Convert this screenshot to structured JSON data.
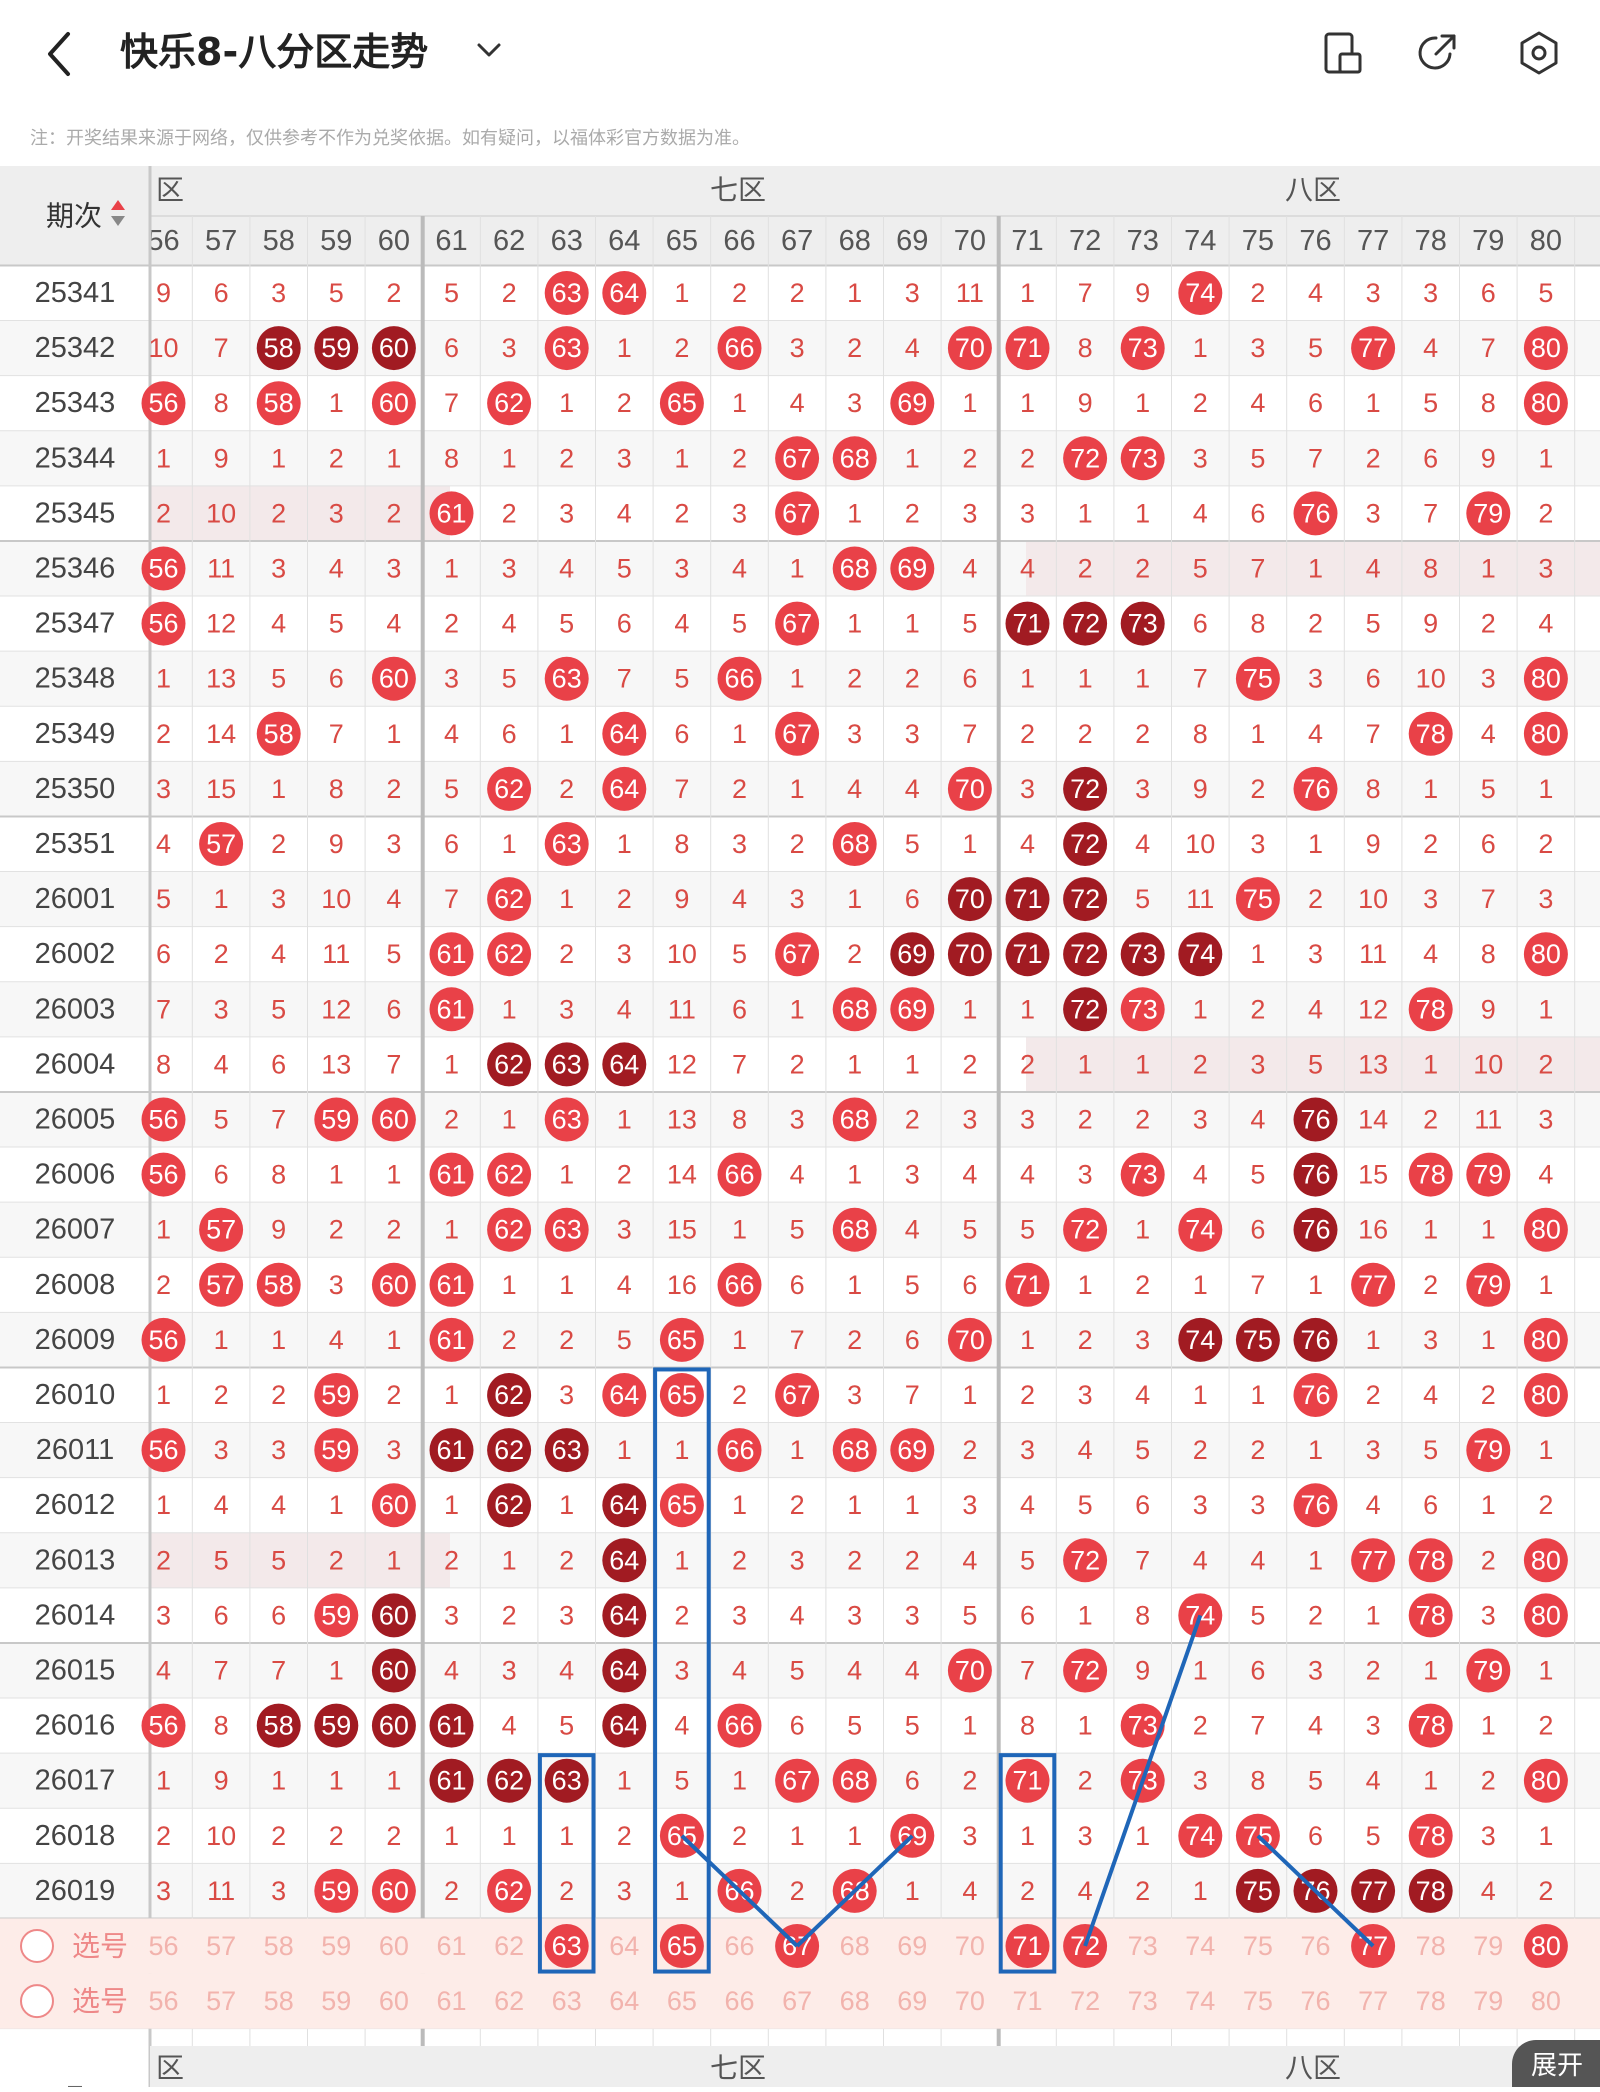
{
  "header": {
    "title": "快乐8-八分区走势",
    "back_icon": "back-arrow-icon",
    "dropdown_icon": "chevron-down-icon",
    "actions": [
      {
        "name": "layout-toggle-icon"
      },
      {
        "name": "share-icon"
      },
      {
        "name": "settings-gear-icon"
      }
    ]
  },
  "note": "注：开奖结果来源于网络，仅供参考不作为兑奖依据。如有疑问，以福体彩官方数据为准。",
  "table": {
    "period_header": "期次",
    "zones": [
      {
        "label": "六区",
        "visible_label": "六区",
        "start": 56,
        "end": 60
      },
      {
        "label": "七区",
        "start": 61,
        "end": 70
      },
      {
        "label": "八区",
        "start": 71,
        "end": 80
      }
    ],
    "columns": [
      56,
      57,
      58,
      59,
      60,
      61,
      62,
      63,
      64,
      65,
      66,
      67,
      68,
      69,
      70,
      71,
      72,
      73,
      74,
      75,
      76,
      77,
      78,
      79,
      80
    ],
    "periods": [
      "25341",
      "25342",
      "25343",
      "25344",
      "25345",
      "25346",
      "25347",
      "25348",
      "25349",
      "25350",
      "25351",
      "26001",
      "26002",
      "26003",
      "26004",
      "26005",
      "26006",
      "26007",
      "26008",
      "26009",
      "26010",
      "26011",
      "26012",
      "26013",
      "26014",
      "26015",
      "26016",
      "26017",
      "26018",
      "26019"
    ],
    "rows": [
      [
        9,
        6,
        3,
        5,
        2,
        5,
        2,
        "63",
        "64",
        1,
        2,
        2,
        1,
        3,
        11,
        1,
        7,
        9,
        "74",
        2,
        4,
        3,
        3,
        6,
        5
      ],
      [
        10,
        7,
        "D58",
        "D59",
        "D60",
        6,
        3,
        "63",
        1,
        2,
        "66",
        3,
        2,
        4,
        "70",
        "71",
        8,
        "73",
        1,
        3,
        5,
        "77",
        4,
        7,
        "80"
      ],
      [
        "56",
        8,
        "58",
        1,
        "60",
        7,
        "62",
        1,
        2,
        "65",
        1,
        4,
        3,
        "69",
        1,
        1,
        9,
        1,
        2,
        4,
        6,
        1,
        5,
        8,
        "80"
      ],
      [
        1,
        9,
        1,
        2,
        1,
        8,
        1,
        2,
        3,
        1,
        2,
        "67",
        "68",
        1,
        2,
        2,
        "72",
        "73",
        3,
        5,
        7,
        2,
        6,
        9,
        1
      ],
      [
        2,
        10,
        2,
        3,
        2,
        "61",
        2,
        3,
        4,
        2,
        3,
        "67",
        1,
        2,
        3,
        3,
        1,
        1,
        4,
        6,
        "76",
        3,
        7,
        "79",
        2
      ],
      [
        "56",
        11,
        3,
        4,
        3,
        1,
        3,
        4,
        5,
        3,
        4,
        1,
        "68",
        "69",
        4,
        4,
        2,
        2,
        5,
        7,
        1,
        4,
        8,
        1,
        3
      ],
      [
        "56",
        12,
        4,
        5,
        4,
        2,
        4,
        5,
        6,
        4,
        5,
        "67",
        1,
        1,
        5,
        "D71",
        "D72",
        "D73",
        6,
        8,
        2,
        5,
        9,
        2,
        4
      ],
      [
        1,
        13,
        5,
        6,
        "60",
        3,
        5,
        "63",
        7,
        5,
        "66",
        1,
        2,
        2,
        6,
        1,
        1,
        1,
        7,
        "75",
        3,
        6,
        10,
        3,
        "80"
      ],
      [
        2,
        14,
        "58",
        7,
        1,
        4,
        6,
        1,
        "64",
        6,
        1,
        "67",
        3,
        3,
        7,
        2,
        2,
        2,
        8,
        1,
        4,
        7,
        "78",
        4,
        "80"
      ],
      [
        3,
        15,
        1,
        8,
        2,
        5,
        "62",
        2,
        "64",
        7,
        2,
        1,
        4,
        4,
        "70",
        3,
        "D72",
        3,
        9,
        2,
        "76",
        8,
        1,
        5,
        1
      ],
      [
        4,
        "57",
        2,
        9,
        3,
        6,
        1,
        "63",
        1,
        8,
        3,
        2,
        "68",
        5,
        1,
        4,
        "D72",
        4,
        10,
        3,
        1,
        9,
        2,
        6,
        2
      ],
      [
        5,
        1,
        3,
        10,
        4,
        7,
        "62",
        1,
        2,
        9,
        4,
        3,
        1,
        6,
        "D70",
        "D71",
        "D72",
        5,
        11,
        "75",
        2,
        10,
        3,
        7,
        3
      ],
      [
        6,
        2,
        4,
        11,
        5,
        "61",
        "62",
        2,
        3,
        10,
        5,
        "67",
        2,
        "D69",
        "D70",
        "D71",
        "D72",
        "D73",
        "D74",
        1,
        3,
        11,
        4,
        8,
        "80"
      ],
      [
        7,
        3,
        5,
        12,
        6,
        "61",
        1,
        3,
        4,
        11,
        6,
        1,
        "68",
        "69",
        1,
        1,
        "D72",
        "73",
        1,
        2,
        4,
        12,
        "78",
        9,
        1
      ],
      [
        8,
        4,
        6,
        13,
        7,
        1,
        "D62",
        "D63",
        "D64",
        12,
        7,
        2,
        1,
        1,
        2,
        2,
        1,
        1,
        2,
        3,
        5,
        13,
        1,
        10,
        2
      ],
      [
        "56",
        5,
        7,
        "59",
        "60",
        2,
        1,
        "63",
        1,
        13,
        8,
        3,
        "68",
        2,
        3,
        3,
        2,
        2,
        3,
        4,
        "D76",
        14,
        2,
        11,
        3
      ],
      [
        "56",
        6,
        8,
        1,
        1,
        "61",
        "62",
        1,
        2,
        14,
        "66",
        4,
        1,
        3,
        4,
        4,
        3,
        "73",
        4,
        5,
        "D76",
        15,
        "78",
        "79",
        4
      ],
      [
        1,
        "57",
        9,
        2,
        2,
        1,
        "62",
        "63",
        3,
        15,
        1,
        5,
        "68",
        4,
        5,
        5,
        "72",
        1,
        "74",
        6,
        "D76",
        16,
        1,
        1,
        "80"
      ],
      [
        2,
        "57",
        "58",
        3,
        "60",
        "61",
        1,
        1,
        4,
        16,
        "66",
        6,
        1,
        5,
        6,
        "71",
        1,
        2,
        1,
        7,
        1,
        "77",
        2,
        "79",
        1
      ],
      [
        "56",
        1,
        1,
        4,
        1,
        "61",
        2,
        2,
        5,
        "65",
        1,
        7,
        2,
        6,
        "70",
        1,
        2,
        3,
        "D74",
        "D75",
        "D76",
        1,
        3,
        1,
        "80"
      ],
      [
        1,
        2,
        2,
        "59",
        2,
        1,
        "D62",
        3,
        "64",
        "65",
        2,
        "67",
        3,
        7,
        1,
        2,
        3,
        4,
        1,
        1,
        "76",
        2,
        4,
        2,
        "80"
      ],
      [
        "56",
        3,
        3,
        "59",
        3,
        "D61",
        "D62",
        "D63",
        1,
        1,
        "66",
        1,
        "68",
        "69",
        2,
        3,
        4,
        5,
        2,
        2,
        1,
        3,
        5,
        "79",
        1
      ],
      [
        1,
        4,
        4,
        1,
        "60",
        1,
        "D62",
        1,
        "D64",
        "65",
        1,
        2,
        1,
        1,
        3,
        4,
        5,
        6,
        3,
        3,
        "76",
        4,
        6,
        1,
        2
      ],
      [
        2,
        5,
        5,
        2,
        1,
        2,
        1,
        2,
        "D64",
        1,
        2,
        3,
        2,
        2,
        4,
        5,
        "72",
        7,
        4,
        4,
        1,
        "77",
        "78",
        2,
        "80"
      ],
      [
        3,
        6,
        6,
        "59",
        "D60",
        3,
        2,
        3,
        "D64",
        2,
        3,
        4,
        3,
        3,
        5,
        6,
        1,
        8,
        "74",
        5,
        2,
        1,
        "78",
        3,
        "80"
      ],
      [
        4,
        7,
        7,
        1,
        "D60",
        4,
        3,
        4,
        "D64",
        3,
        4,
        5,
        4,
        4,
        "70",
        7,
        "72",
        9,
        1,
        6,
        3,
        2,
        1,
        "79",
        1
      ],
      [
        "56",
        8,
        "D58",
        "D59",
        "D60",
        "D61",
        4,
        5,
        "D64",
        4,
        "66",
        6,
        5,
        5,
        1,
        8,
        1,
        "73",
        2,
        7,
        4,
        3,
        "78",
        1,
        2
      ],
      [
        1,
        9,
        1,
        1,
        1,
        "D61",
        "D62",
        "D63",
        1,
        5,
        1,
        "67",
        "68",
        6,
        2,
        "71",
        2,
        "73",
        3,
        8,
        5,
        4,
        1,
        2,
        "80"
      ],
      [
        2,
        10,
        2,
        2,
        2,
        1,
        1,
        1,
        2,
        "65",
        2,
        1,
        1,
        "69",
        3,
        1,
        3,
        1,
        "74",
        "75",
        6,
        5,
        "78",
        3,
        1
      ],
      [
        3,
        11,
        3,
        "59",
        "60",
        2,
        "62",
        2,
        3,
        1,
        "66",
        2,
        "68",
        1,
        4,
        2,
        4,
        2,
        1,
        "D75",
        "D76",
        "D77",
        "D78",
        4,
        2
      ]
    ],
    "select_rows": [
      {
        "label": "选号",
        "picked": [
          63,
          65,
          67,
          71,
          72,
          77,
          80
        ]
      },
      {
        "label": "选号",
        "picked": []
      }
    ],
    "highlight_zone_rows": [
      {
        "period": "25345",
        "zone": "六区"
      },
      {
        "period": "25346",
        "zone": "八区"
      },
      {
        "period": "26004",
        "zone": "八区"
      },
      {
        "period": "26013",
        "zone": "六区"
      }
    ]
  },
  "footer": {
    "zones": [
      "六区",
      "七区",
      "八区"
    ],
    "expand_label": "展开"
  },
  "colors": {
    "ball_red": "#e94148",
    "ball_dark": "#a11b22",
    "number_text": "#d94a44",
    "select_row_bg": "#fdece8",
    "highlight_band": "#f3e9ea",
    "annotation_blue": "#1f66b8"
  }
}
